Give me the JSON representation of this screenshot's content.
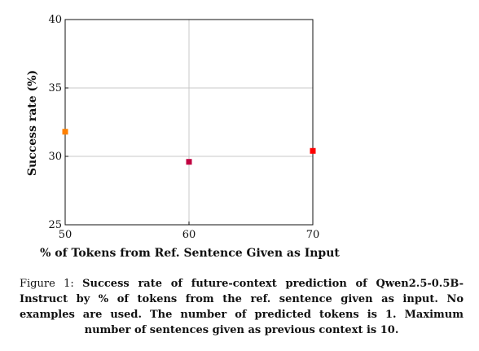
{
  "chart_data": {
    "type": "scatter",
    "title": "",
    "xlabel": "% of Tokens from Ref. Sentence Given as Input",
    "ylabel": "Success rate (%)",
    "xlim": [
      50,
      70
    ],
    "ylim": [
      25,
      40
    ],
    "xticks": [
      50,
      60,
      70
    ],
    "yticks": [
      25,
      30,
      35,
      40
    ],
    "grid": true,
    "series": [
      {
        "points": [
          {
            "x": 50,
            "y": 31.8,
            "color": "#ff8000"
          },
          {
            "x": 60,
            "y": 29.6,
            "color": "#c00040"
          },
          {
            "x": 70,
            "y": 30.4,
            "color": "#ff0000"
          }
        ]
      }
    ]
  },
  "caption": {
    "prefix": "Figure 1: ",
    "body": "Success rate of future-context prediction of Qwen2.5-0.5B-Instruct by % of tokens from the ref. sentence given as input. No examples are used. The number of predicted tokens is 1. Maximum number of sentences given as previous context is 10."
  }
}
